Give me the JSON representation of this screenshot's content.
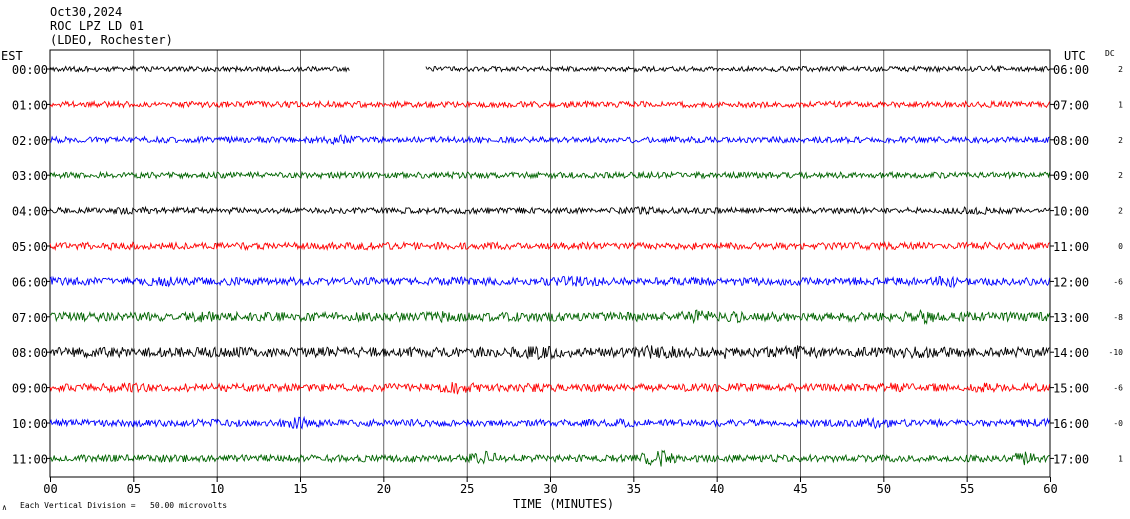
{
  "header": {
    "date": "Oct30,2024",
    "station": "ROC LPZ LD 01",
    "network": "(LDEO, Rochester)"
  },
  "left_zone_label": "EST",
  "right_zone_label": "UTC",
  "dc_header": "DC",
  "footer": {
    "scale_note": "Each Vertical Division =   50.00 microvolts",
    "corner_mark": "∧"
  },
  "colors": {
    "black": "#000000",
    "red": "#ff0000",
    "blue": "#0000ff",
    "green": "#006400"
  },
  "chart_data": {
    "type": "line",
    "title": "ROC LPZ LD 01",
    "xlabel": "TIME (MINUTES)",
    "xlim": [
      0,
      60
    ],
    "x_ticks": [
      "00",
      "05",
      "10",
      "15",
      "20",
      "25",
      "30",
      "35",
      "40",
      "45",
      "50",
      "55",
      "60"
    ],
    "grid": true,
    "rows": [
      {
        "est": "00:00",
        "utc": "06:00",
        "dc": "2",
        "color": "black",
        "amplitude": 2.5,
        "gap": [
          18,
          22.5
        ],
        "bursts": [
          [
            13.5,
            2.5
          ],
          [
            56.5,
            3.5
          ],
          [
            46,
            2.5
          ]
        ]
      },
      {
        "est": "01:00",
        "utc": "07:00",
        "dc": "1",
        "color": "red",
        "amplitude": 3,
        "bursts": [
          [
            50.5,
            3
          ],
          [
            24,
            2.5
          ],
          [
            11,
            2
          ]
        ]
      },
      {
        "est": "02:00",
        "utc": "08:00",
        "dc": "2",
        "color": "blue",
        "amplitude": 3,
        "bursts": [
          [
            17.5,
            5
          ],
          [
            44,
            3
          ],
          [
            35,
            2.5
          ]
        ]
      },
      {
        "est": "03:00",
        "utc": "09:00",
        "dc": "2",
        "color": "green",
        "amplitude": 3,
        "bursts": [
          [
            8.5,
            3
          ],
          [
            23,
            3
          ],
          [
            36,
            2.5
          ],
          [
            55,
            3
          ]
        ]
      },
      {
        "est": "04:00",
        "utc": "10:00",
        "dc": "2",
        "color": "black",
        "amplitude": 3,
        "bursts": [
          [
            5,
            4
          ],
          [
            35.5,
            4
          ],
          [
            55.5,
            5
          ],
          [
            24,
            3
          ]
        ]
      },
      {
        "est": "05:00",
        "utc": "11:00",
        "dc": "0",
        "color": "red",
        "amplitude": 3.5,
        "bursts": [
          [
            3.5,
            4
          ],
          [
            19.5,
            4
          ],
          [
            48.5,
            4
          ],
          [
            56.5,
            4
          ],
          [
            31,
            3
          ]
        ]
      },
      {
        "est": "06:00",
        "utc": "12:00",
        "dc": "-6",
        "color": "blue",
        "amplitude": 4,
        "bursts": [
          [
            7,
            5
          ],
          [
            24.5,
            5
          ],
          [
            31.5,
            6
          ],
          [
            54,
            6
          ],
          [
            44.5,
            4
          ]
        ]
      },
      {
        "est": "07:00",
        "utc": "13:00",
        "dc": "-8",
        "color": "green",
        "amplitude": 4.5,
        "bursts": [
          [
            9.5,
            6
          ],
          [
            23.5,
            6
          ],
          [
            38.8,
            7
          ],
          [
            41.5,
            6
          ],
          [
            52.5,
            7
          ]
        ]
      },
      {
        "est": "08:00",
        "utc": "14:00",
        "dc": "-10",
        "color": "black",
        "amplitude": 5,
        "bursts": [
          [
            29.5,
            8
          ],
          [
            36.5,
            8
          ],
          [
            40.5,
            7
          ],
          [
            45,
            8
          ],
          [
            52,
            6
          ]
        ]
      },
      {
        "est": "09:00",
        "utc": "15:00",
        "dc": "-6",
        "color": "red",
        "amplitude": 4,
        "bursts": [
          [
            4.5,
            5
          ],
          [
            24.5,
            7
          ],
          [
            29,
            5
          ],
          [
            50.5,
            5
          ],
          [
            56,
            5
          ]
        ]
      },
      {
        "est": "10:00",
        "utc": "16:00",
        "dc": "-0",
        "color": "blue",
        "amplitude": 3.5,
        "bursts": [
          [
            15,
            7
          ],
          [
            9,
            4
          ],
          [
            35,
            5
          ],
          [
            49.5,
            6
          ],
          [
            59,
            5
          ]
        ]
      },
      {
        "est": "11:00",
        "utc": "17:00",
        "dc": "1",
        "color": "green",
        "amplitude": 3.5,
        "bursts": [
          [
            26,
            8
          ],
          [
            36.5,
            9
          ],
          [
            58.5,
            7
          ],
          [
            7.5,
            4
          ],
          [
            52.5,
            4
          ]
        ]
      }
    ]
  }
}
